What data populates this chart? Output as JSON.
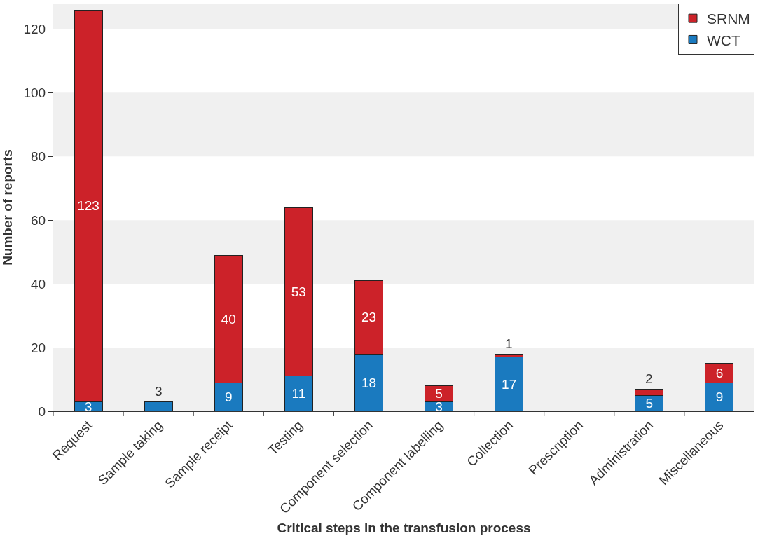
{
  "chart_data": {
    "type": "bar",
    "stacked": true,
    "xlabel": "Critical steps in the transfusion process",
    "ylabel": "Number of reports",
    "categories": [
      "Request",
      "Sample taking",
      "Sample receipt",
      "Testing",
      "Component selection",
      "Component labelling",
      "Collection",
      "Prescription",
      "Administration",
      "Miscellaneous"
    ],
    "series": [
      {
        "name": "WCT",
        "color": "#1a7abf",
        "values": [
          3,
          3,
          9,
          11,
          18,
          3,
          17,
          null,
          5,
          9
        ],
        "value_labels": [
          "3",
          "3",
          "9",
          "11",
          "18",
          "3",
          "17",
          null,
          "5",
          "9"
        ]
      },
      {
        "name": "SRNM",
        "color": "#cc2229",
        "values": [
          123,
          null,
          40,
          53,
          23,
          5,
          1,
          null,
          2,
          6
        ],
        "value_labels": [
          "123",
          null,
          "40",
          "53",
          "23",
          "5",
          "1",
          null,
          "2",
          "6"
        ]
      }
    ],
    "ylim": [
      0,
      128
    ],
    "yticks": [
      0,
      20,
      40,
      60,
      80,
      100,
      120
    ],
    "bands": [
      {
        "axis": "y",
        "from": 0,
        "to": 20,
        "color": "#f0f0f0"
      },
      {
        "axis": "y",
        "from": 40,
        "to": 60,
        "color": "#f0f0f0"
      },
      {
        "axis": "y",
        "from": 80,
        "to": 100,
        "color": "#f0f0f0"
      },
      {
        "axis": "y",
        "from": 120,
        "to": 128,
        "color": "#f0f0f0"
      }
    ],
    "legend": "top right"
  }
}
